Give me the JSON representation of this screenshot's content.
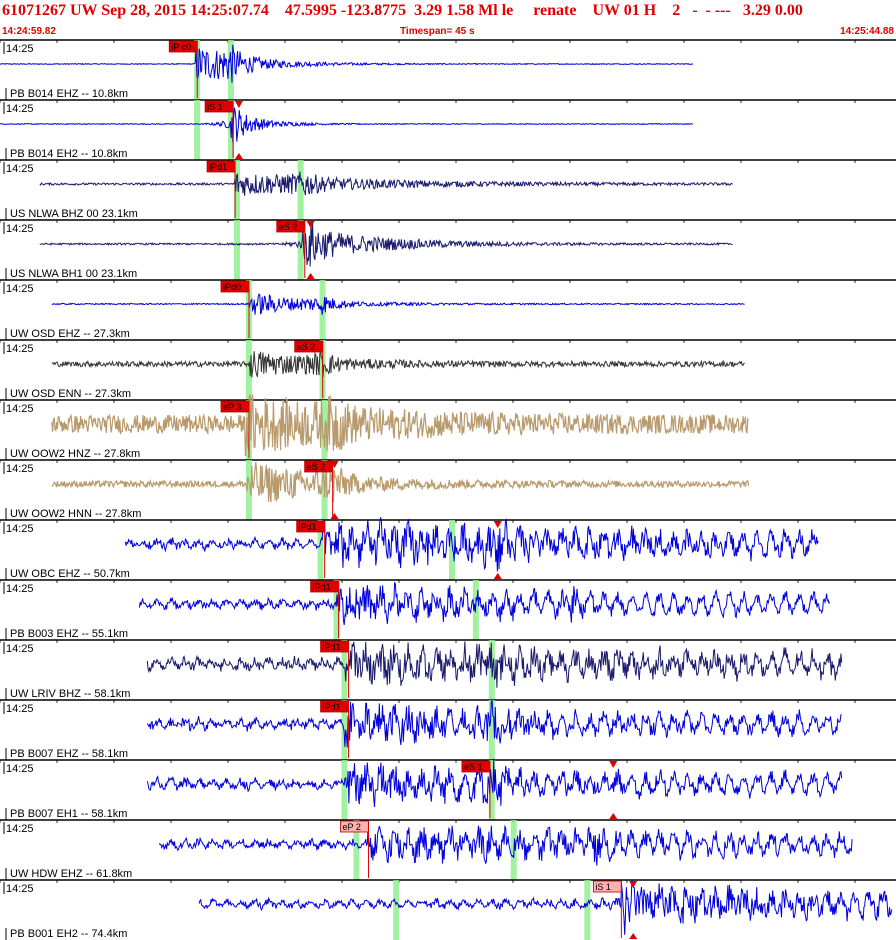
{
  "header": {
    "title": "61071267 UW Sep 28, 2015 14:25:07.74    47.5995 -123.8775  3.29 1.58 Ml le     renate    UW 01 H    2   -  - ---   3.29 0.00",
    "start_time": "14:24:59.82",
    "timespan": "Timespan=  45 s",
    "end_time": "14:25:44.88"
  },
  "chart_data": {
    "type": "line",
    "title": "61071267 UW Sep 28, 2015 14:25:07.74    47.5995 -123.8775  3.29 1.58 Ml le     renate    UW 01 H    2   -  - ---   3.29 0.00",
    "xlabel": "",
    "ylabel": "",
    "x_range": [
      "14:24:59.82",
      "14:25:44.88"
    ],
    "timespan_s": 45,
    "grid": true,
    "colors": {
      "title": "#e00000",
      "pick": "#e00000",
      "marker_band": "#90ee90"
    },
    "series": [
      {
        "name": "PB B014 EHZ -- 10.8km",
        "time_label": "14:25",
        "color": "#0000dd",
        "style": "flat",
        "start_s": 0.0,
        "end_s": 34.8,
        "onset_s": 9.8,
        "amp": 0.9,
        "decay": 2.5,
        "noise": 0.02,
        "burst_s": 11.6,
        "picks": [
          {
            "label": "iP c0",
            "t_s": 8.5,
            "light": false
          }
        ],
        "markers": [
          9.9,
          11.6
        ],
        "arrow_s": null
      },
      {
        "name": "PB B014 EH2 -- 10.8km",
        "time_label": "14:25",
        "color": "#0000dd",
        "style": "flat",
        "start_s": 0.0,
        "end_s": 34.8,
        "onset_s": 11.6,
        "amp": 0.6,
        "decay": 1.5,
        "noise": 0.02,
        "burst_s": 11.8,
        "picks": [
          {
            "label": "iS 1",
            "t_s": 10.3,
            "light": false
          }
        ],
        "markers": [
          9.9,
          11.6
        ],
        "arrow_s": 12.0
      },
      {
        "name": "US NLWA BHZ 00 23.1km",
        "time_label": "14:25",
        "color": "#1a1a6e",
        "style": "noise",
        "start_s": 2.0,
        "end_s": 36.8,
        "onset_s": 11.8,
        "amp": 0.55,
        "decay": 6.0,
        "noise": 0.05,
        "burst_s": 15.3,
        "picks": [
          {
            "label": "iPd1",
            "t_s": 10.4,
            "light": false
          }
        ],
        "markers": [
          11.9,
          15.1
        ],
        "arrow_s": null
      },
      {
        "name": "US NLWA BH1 00 23.1km",
        "time_label": "14:25",
        "color": "#1a1a6e",
        "style": "noise",
        "start_s": 2.0,
        "end_s": 36.8,
        "onset_s": 15.2,
        "amp": 0.75,
        "decay": 4.0,
        "noise": 0.04,
        "burst_s": 15.6,
        "picks": [
          {
            "label": "eS 2",
            "t_s": 13.9,
            "light": false
          }
        ],
        "markers": [
          11.9,
          15.1
        ],
        "arrow_s": 15.6
      },
      {
        "name": "UW OSD EHZ -- 27.3km",
        "time_label": "14:25",
        "color": "#0000dd",
        "style": "noise",
        "start_s": 2.6,
        "end_s": 37.4,
        "onset_s": 12.5,
        "amp": 0.55,
        "decay": 3.0,
        "noise": 0.03,
        "burst_s": 16.2,
        "picks": [
          {
            "label": "iPd0",
            "t_s": 11.1,
            "light": false
          }
        ],
        "markers": [
          12.5,
          16.2
        ],
        "arrow_s": null
      },
      {
        "name": "UW OSD ENN -- 27.3km",
        "time_label": "14:25",
        "color": "#333333",
        "style": "noise",
        "start_s": 2.6,
        "end_s": 37.4,
        "onset_s": 12.5,
        "amp": 0.6,
        "decay": 3.5,
        "noise": 0.12,
        "burst_s": 16.2,
        "picks": [
          {
            "label": "eS 2",
            "t_s": 14.8,
            "light": false
          }
        ],
        "markers": [
          12.5,
          16.2
        ],
        "arrow_s": null
      },
      {
        "name": "UW OOW2 HNZ -- 27.8km",
        "time_label": "14:25",
        "color": "#b89a6c",
        "style": "fill",
        "start_s": 2.6,
        "end_s": 37.6,
        "onset_s": 12.3,
        "amp": 0.9,
        "decay": 6.0,
        "noise": 0.35,
        "burst_s": 16.8,
        "picks": [
          {
            "label": "eP 3",
            "t_s": 11.1,
            "light": false
          }
        ],
        "markers": [
          12.5,
          16.3
        ],
        "arrow_s": null
      },
      {
        "name": "UW OOW2 HNN -- 27.8km",
        "time_label": "14:25",
        "color": "#b89a6c",
        "style": "fill",
        "start_s": 2.6,
        "end_s": 37.6,
        "onset_s": 12.3,
        "amp": 0.85,
        "decay": 4.0,
        "noise": 0.12,
        "burst_s": 16.8,
        "picks": [
          {
            "label": "eS 2",
            "t_s": 15.3,
            "light": false
          }
        ],
        "markers": [
          12.5,
          16.3
        ],
        "arrow_s": 16.8
      },
      {
        "name": "UW OBC EHZ -- 50.7km",
        "time_label": "14:25",
        "color": "#0000dd",
        "style": "wiggle",
        "start_s": 6.3,
        "end_s": 41.1,
        "onset_s": 16.2,
        "amp": 0.8,
        "decay": 18.0,
        "noise": 0.12,
        "burst_s": 25.0,
        "picks": [
          {
            "label": "iPd1",
            "t_s": 14.9,
            "light": false
          }
        ],
        "markers": [
          16.1,
          22.7
        ],
        "arrow_s": 25.0
      },
      {
        "name": "PB B003 EHZ -- 55.1km",
        "time_label": "14:25",
        "color": "#0000dd",
        "style": "wiggle",
        "start_s": 7.0,
        "end_s": 41.7,
        "onset_s": 16.9,
        "amp": 0.7,
        "decay": 12.0,
        "noise": 0.08,
        "burst_s": 28.7,
        "picks": [
          {
            "label": "iPd1",
            "t_s": 15.6,
            "light": false
          }
        ],
        "markers": [
          16.9,
          23.9
        ],
        "arrow_s": null
      },
      {
        "name": "UW LRIV BHZ -- 58.1km",
        "time_label": "14:25",
        "color": "#1a1a6e",
        "style": "wiggle",
        "start_s": 7.4,
        "end_s": 42.3,
        "onset_s": 17.3,
        "amp": 0.6,
        "decay": 20.0,
        "noise": 0.18,
        "burst_s": 24.8,
        "picks": [
          {
            "label": "iPd1",
            "t_s": 16.1,
            "light": false
          }
        ],
        "markers": [
          17.3,
          24.7
        ],
        "arrow_s": null
      },
      {
        "name": "PB B007 EHZ -- 58.1km",
        "time_label": "14:25",
        "color": "#0000dd",
        "style": "wiggle",
        "start_s": 7.4,
        "end_s": 42.3,
        "onset_s": 17.3,
        "amp": 0.7,
        "decay": 12.0,
        "noise": 0.12,
        "burst_s": 24.8,
        "picks": [
          {
            "label": "iPd1",
            "t_s": 16.1,
            "light": false
          }
        ],
        "markers": [
          17.3,
          24.7
        ],
        "arrow_s": null
      },
      {
        "name": "PB B007 EH1 -- 58.1km",
        "time_label": "14:25",
        "color": "#0000dd",
        "style": "wiggle",
        "start_s": 7.4,
        "end_s": 42.3,
        "onset_s": 17.3,
        "amp": 0.7,
        "decay": 12.0,
        "noise": 0.12,
        "burst_s": 24.8,
        "picks": [
          {
            "label": "eS 1",
            "t_s": 23.2,
            "light": false
          }
        ],
        "markers": [
          17.3,
          24.7
        ],
        "arrow_s": 30.8
      },
      {
        "name": "UW HDW EHZ -- 61.8km",
        "time_label": "14:25",
        "color": "#0000dd",
        "style": "wiggle",
        "start_s": 8.0,
        "end_s": 42.8,
        "onset_s": 18.4,
        "amp": 0.55,
        "decay": 25.0,
        "noise": 0.08,
        "burst_s": 30.0,
        "picks": [
          {
            "label": "eP 2",
            "t_s": 17.1,
            "light": true
          }
        ],
        "markers": [
          17.9,
          25.8
        ],
        "arrow_s": null
      },
      {
        "name": "PB B001 EH2 -- 74.4km",
        "time_label": "14:25",
        "color": "#0000dd",
        "style": "wiggle",
        "start_s": 10.0,
        "end_s": 44.8,
        "onset_s": 31.2,
        "amp": 0.75,
        "decay": 14.0,
        "noise": 0.06,
        "burst_s": 31.6,
        "picks": [
          {
            "label": "iS 1",
            "t_s": 29.8,
            "light": true
          }
        ],
        "markers": [
          19.9,
          29.5
        ],
        "arrow_s": 31.8
      }
    ]
  }
}
